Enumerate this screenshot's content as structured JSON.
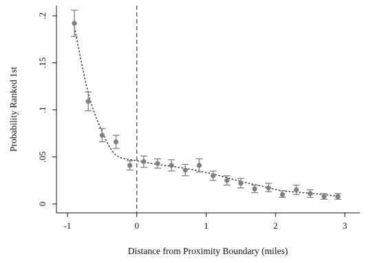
{
  "chart_data": {
    "type": "scatter",
    "title": "",
    "xlabel": "Distance from Proximity Boundary (miles)",
    "ylabel": "Probability Ranked 1st",
    "xlim": [
      -1.1,
      3.1
    ],
    "ylim": [
      0,
      0.205
    ],
    "x_ticks": [
      -1,
      0,
      1,
      2,
      3
    ],
    "x_tick_labels": [
      "-1",
      "0",
      "1",
      "2",
      "3"
    ],
    "y_ticks": [
      0,
      0.05,
      0.1,
      0.15,
      0.2
    ],
    "y_tick_labels": [
      "0",
      ".05",
      ".1",
      ".15",
      ".2"
    ],
    "grid": false,
    "reference_line": {
      "x": 0,
      "style": "dashed"
    },
    "series": [
      {
        "kind": "points_with_error_bars",
        "points": [
          {
            "x": -0.9,
            "y": 0.192,
            "lo": 0.178,
            "hi": 0.206
          },
          {
            "x": -0.7,
            "y": 0.109,
            "lo": 0.099,
            "hi": 0.119
          },
          {
            "x": -0.5,
            "y": 0.073,
            "lo": 0.066,
            "hi": 0.08
          },
          {
            "x": -0.3,
            "y": 0.066,
            "lo": 0.059,
            "hi": 0.073
          },
          {
            "x": -0.1,
            "y": 0.041,
            "lo": 0.036,
            "hi": 0.046
          },
          {
            "x": 0.1,
            "y": 0.045,
            "lo": 0.039,
            "hi": 0.051
          },
          {
            "x": 0.3,
            "y": 0.043,
            "lo": 0.038,
            "hi": 0.048
          },
          {
            "x": 0.5,
            "y": 0.041,
            "lo": 0.035,
            "hi": 0.047
          },
          {
            "x": 0.7,
            "y": 0.036,
            "lo": 0.03,
            "hi": 0.042
          },
          {
            "x": 0.9,
            "y": 0.041,
            "lo": 0.034,
            "hi": 0.048
          },
          {
            "x": 1.1,
            "y": 0.03,
            "lo": 0.025,
            "hi": 0.035
          },
          {
            "x": 1.3,
            "y": 0.025,
            "lo": 0.02,
            "hi": 0.03
          },
          {
            "x": 1.5,
            "y": 0.022,
            "lo": 0.017,
            "hi": 0.027
          },
          {
            "x": 1.7,
            "y": 0.016,
            "lo": 0.012,
            "hi": 0.02
          },
          {
            "x": 1.9,
            "y": 0.017,
            "lo": 0.013,
            "hi": 0.022
          },
          {
            "x": 2.1,
            "y": 0.01,
            "lo": 0.007,
            "hi": 0.014
          },
          {
            "x": 2.3,
            "y": 0.015,
            "lo": 0.01,
            "hi": 0.02
          },
          {
            "x": 2.5,
            "y": 0.011,
            "lo": 0.007,
            "hi": 0.015
          },
          {
            "x": 2.7,
            "y": 0.008,
            "lo": 0.005,
            "hi": 0.011
          },
          {
            "x": 2.9,
            "y": 0.008,
            "lo": 0.005,
            "hi": 0.011
          }
        ]
      },
      {
        "kind": "fitted_line",
        "style": "dotted",
        "points": [
          {
            "x": -0.9,
            "y": 0.188
          },
          {
            "x": -0.7,
            "y": 0.118
          },
          {
            "x": -0.5,
            "y": 0.077
          },
          {
            "x": -0.3,
            "y": 0.052
          },
          {
            "x": 0,
            "y": 0.046
          },
          {
            "x": 0.3,
            "y": 0.042
          },
          {
            "x": 0.6,
            "y": 0.039
          },
          {
            "x": 0.9,
            "y": 0.035
          },
          {
            "x": 1.2,
            "y": 0.03
          },
          {
            "x": 1.5,
            "y": 0.024
          },
          {
            "x": 1.8,
            "y": 0.019
          },
          {
            "x": 2.1,
            "y": 0.014
          },
          {
            "x": 2.4,
            "y": 0.012
          },
          {
            "x": 2.7,
            "y": 0.01
          },
          {
            "x": 2.9,
            "y": 0.008
          }
        ]
      }
    ],
    "colors": {
      "points": "#7f7f7f",
      "error_bars": "#7f7f7f",
      "fitted_line": "#2b2b2b",
      "reference_line": "#3a3a3a",
      "axes": "#111111"
    }
  }
}
